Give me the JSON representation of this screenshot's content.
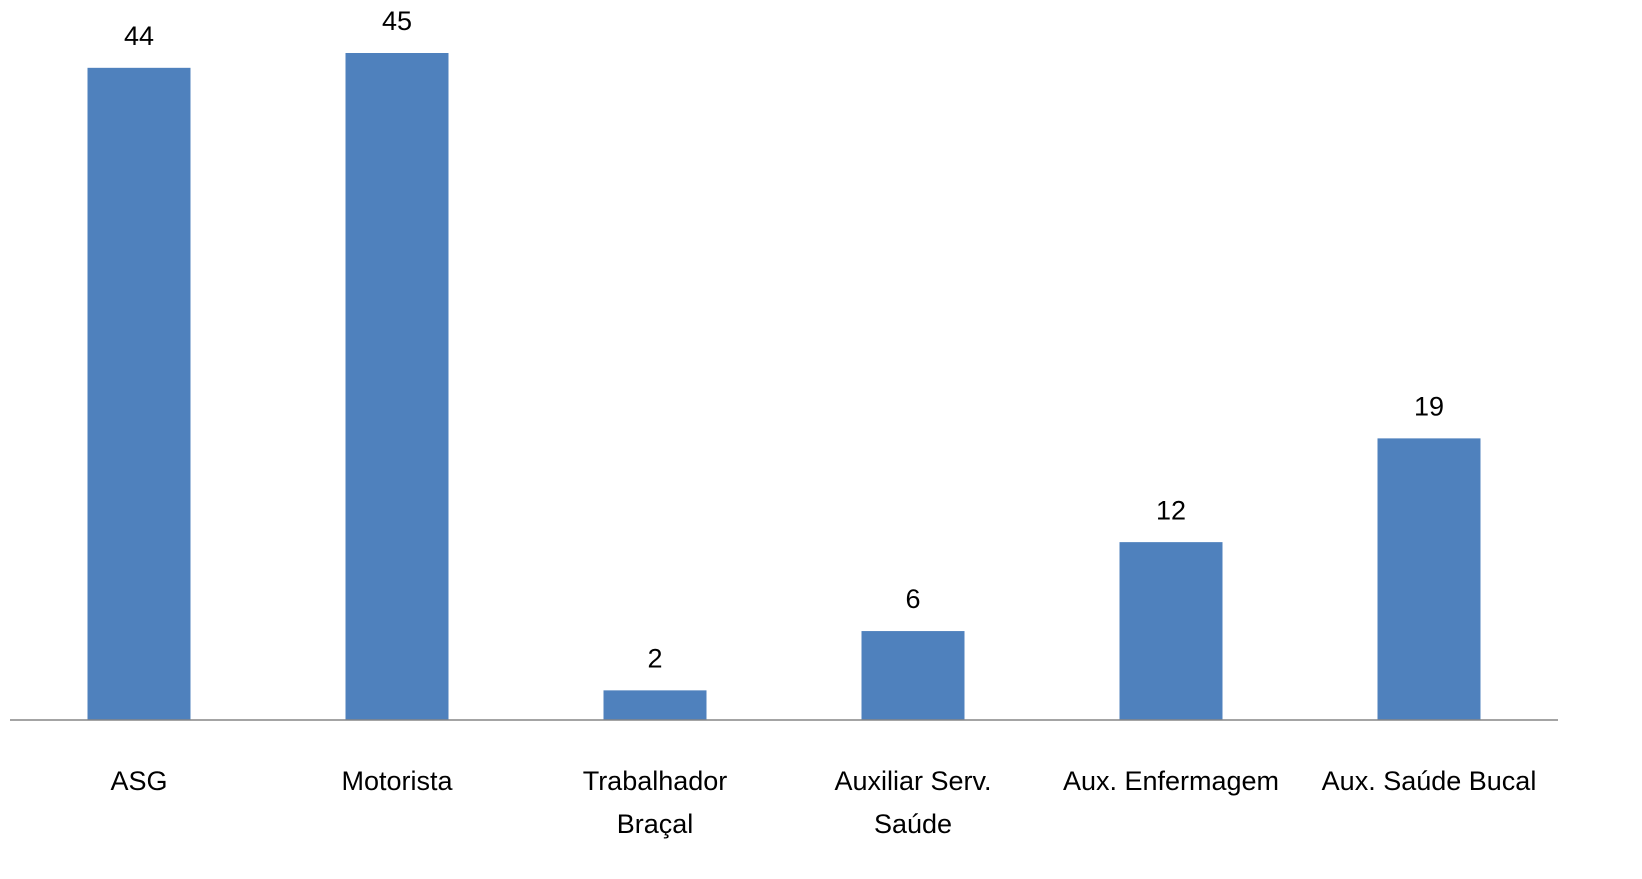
{
  "chart_data": {
    "type": "bar",
    "categories": [
      "ASG",
      "Motorista",
      "Trabalhador Braçal",
      "Auxiliar Serv. Saúde",
      "Aux. Enfermagem",
      "Aux. Saúde Bucal"
    ],
    "values": [
      44,
      45,
      2,
      6,
      12,
      19
    ],
    "color": "#4f81bd"
  }
}
